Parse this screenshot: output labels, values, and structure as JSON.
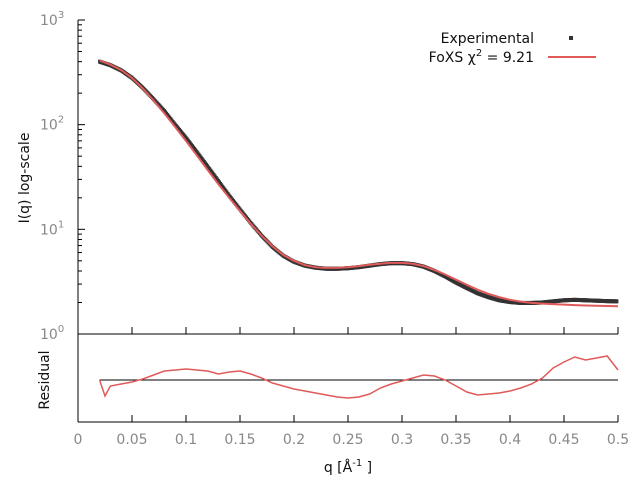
{
  "chart_data": [
    {
      "type": "scatter",
      "role": "main",
      "xlabel": "",
      "ylabel": "I(q) log-scale",
      "yscale": "log",
      "xlim": [
        0,
        0.5
      ],
      "ylim": [
        1,
        1000
      ],
      "ytick_labels": [
        {
          "value": 1,
          "mantissa": "10",
          "exp": "0"
        },
        {
          "value": 10,
          "mantissa": "10",
          "exp": "1"
        },
        {
          "value": 100,
          "mantissa": "10",
          "exp": "2"
        },
        {
          "value": 1000,
          "mantissa": "10",
          "exp": "3"
        }
      ],
      "grid": false,
      "legend_position": "top-right",
      "legend": [
        {
          "label": "Experimental",
          "marker": "point",
          "color": "#333333"
        },
        {
          "label_prefix": "FoXS χ",
          "label_sup": "2",
          "label_suffix": " = 9.21",
          "marker": "line",
          "color": "#e05a5a"
        }
      ],
      "series": [
        {
          "name": "Experimental",
          "kind": "points",
          "color": "#333333",
          "x": [
            0.02,
            0.03,
            0.04,
            0.05,
            0.06,
            0.07,
            0.08,
            0.09,
            0.1,
            0.11,
            0.12,
            0.13,
            0.14,
            0.15,
            0.16,
            0.17,
            0.18,
            0.19,
            0.2,
            0.21,
            0.22,
            0.23,
            0.24,
            0.25,
            0.26,
            0.27,
            0.28,
            0.29,
            0.3,
            0.31,
            0.32,
            0.33,
            0.34,
            0.35,
            0.36,
            0.37,
            0.38,
            0.39,
            0.4,
            0.41,
            0.42,
            0.43,
            0.44,
            0.45,
            0.46,
            0.47,
            0.48,
            0.49,
            0.5
          ],
          "y": [
            400,
            370,
            330,
            280,
            225,
            175,
            135,
            100,
            75,
            55,
            40,
            29,
            21,
            15.5,
            11.5,
            8.7,
            6.8,
            5.6,
            4.9,
            4.5,
            4.3,
            4.2,
            4.2,
            4.25,
            4.35,
            4.5,
            4.65,
            4.75,
            4.75,
            4.65,
            4.4,
            4.0,
            3.55,
            3.1,
            2.75,
            2.45,
            2.25,
            2.1,
            2.02,
            1.98,
            1.98,
            2.0,
            2.05,
            2.1,
            2.12,
            2.1,
            2.08,
            2.06,
            2.05
          ]
        },
        {
          "name": "FoXS χ² = 9.21",
          "kind": "line",
          "color": "#e05a5a",
          "x": [
            0.02,
            0.03,
            0.04,
            0.05,
            0.06,
            0.07,
            0.08,
            0.09,
            0.1,
            0.11,
            0.12,
            0.13,
            0.14,
            0.15,
            0.16,
            0.17,
            0.18,
            0.19,
            0.2,
            0.21,
            0.22,
            0.23,
            0.24,
            0.25,
            0.26,
            0.27,
            0.28,
            0.29,
            0.3,
            0.31,
            0.32,
            0.33,
            0.34,
            0.35,
            0.36,
            0.37,
            0.38,
            0.39,
            0.4,
            0.41,
            0.42,
            0.43,
            0.44,
            0.45,
            0.46,
            0.47,
            0.48,
            0.49,
            0.5
          ],
          "y": [
            410,
            375,
            332,
            280,
            222,
            170,
            128,
            95,
            70,
            51,
            37,
            27,
            20,
            15,
            11.3,
            8.7,
            6.9,
            5.7,
            5.0,
            4.55,
            4.35,
            4.28,
            4.3,
            4.35,
            4.45,
            4.58,
            4.7,
            4.78,
            4.78,
            4.68,
            4.45,
            4.1,
            3.7,
            3.3,
            2.95,
            2.65,
            2.42,
            2.25,
            2.12,
            2.04,
            1.98,
            1.95,
            1.93,
            1.91,
            1.89,
            1.87,
            1.86,
            1.85,
            1.84
          ]
        }
      ]
    },
    {
      "type": "line",
      "role": "residual",
      "ylabel": "Residual",
      "xlabel_prefix": "q [Å",
      "xlabel_sup": "-1",
      "xlabel_suffix": " ]",
      "xlim": [
        0,
        0.5
      ],
      "ylim": [
        -4,
        4
      ],
      "xtick_labels": [
        "0",
        "0.05",
        "0.1",
        "0.15",
        "0.2",
        "0.25",
        "0.3",
        "0.35",
        "0.4",
        "0.45",
        "0.5"
      ],
      "xticks": [
        0,
        0.05,
        0.1,
        0.15,
        0.2,
        0.25,
        0.3,
        0.35,
        0.4,
        0.45,
        0.5
      ],
      "reference_line": {
        "y": 0,
        "color": "#000000"
      },
      "series": [
        {
          "name": "Residual",
          "color": "#e05a5a",
          "x": [
            0.02,
            0.025,
            0.03,
            0.04,
            0.05,
            0.06,
            0.07,
            0.08,
            0.09,
            0.1,
            0.11,
            0.12,
            0.13,
            0.14,
            0.15,
            0.16,
            0.17,
            0.18,
            0.19,
            0.2,
            0.21,
            0.22,
            0.23,
            0.24,
            0.25,
            0.26,
            0.27,
            0.28,
            0.29,
            0.3,
            0.31,
            0.32,
            0.33,
            0.34,
            0.35,
            0.36,
            0.37,
            0.38,
            0.39,
            0.4,
            0.41,
            0.42,
            0.43,
            0.44,
            0.45,
            0.46,
            0.47,
            0.48,
            0.49,
            0.5
          ],
          "y": [
            0,
            -1.6,
            -0.6,
            -0.4,
            -0.2,
            0.1,
            0.5,
            0.9,
            1.0,
            1.1,
            1.0,
            0.9,
            0.6,
            0.8,
            0.9,
            0.6,
            0.2,
            -0.3,
            -0.6,
            -0.9,
            -1.1,
            -1.3,
            -1.5,
            -1.7,
            -1.8,
            -1.7,
            -1.4,
            -0.8,
            -0.4,
            -0.1,
            0.2,
            0.5,
            0.4,
            0.0,
            -0.6,
            -1.2,
            -1.5,
            -1.4,
            -1.3,
            -1.1,
            -0.8,
            -0.4,
            0.2,
            1.2,
            1.8,
            2.3,
            2.0,
            2.2,
            2.4,
            1.0
          ]
        }
      ]
    }
  ]
}
